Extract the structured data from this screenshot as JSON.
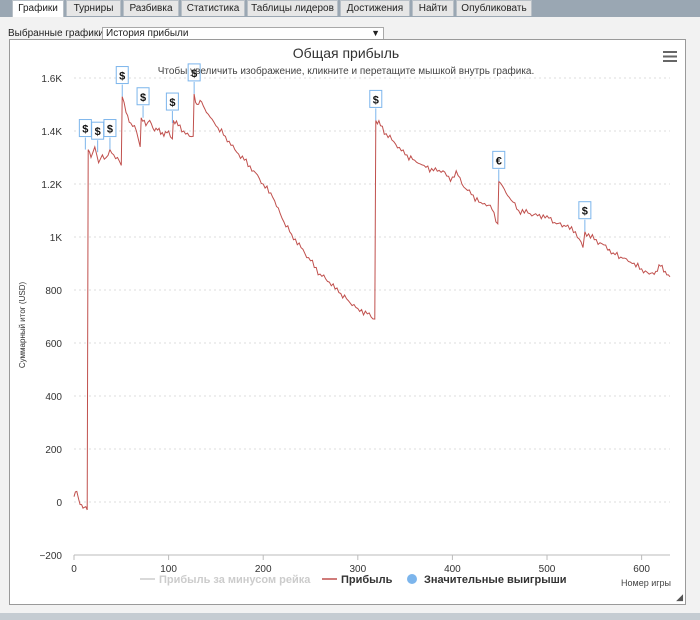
{
  "tabs": [
    {
      "label": "Графики",
      "active": true
    },
    {
      "label": "Турниры",
      "active": false
    },
    {
      "label": "Разбивка",
      "active": false
    },
    {
      "label": "Статистика",
      "active": false
    },
    {
      "label": "Таблицы лидеров",
      "active": false
    },
    {
      "label": "Достижения",
      "active": false
    },
    {
      "label": "Найти",
      "active": false
    },
    {
      "label": "Опубликовать",
      "active": false
    }
  ],
  "selector": {
    "label": "Выбранные графики:",
    "value": "История прибыли"
  },
  "menu_icon": "hamburger-icon",
  "colors": {
    "profit": "#c0504d",
    "rake": "#cccccc",
    "big_wins": "#7cb5ec"
  },
  "chart_data": {
    "type": "line",
    "title": "Общая прибыль",
    "subtitle": "Чтобы увеличить изображение, кликните и перетащите мышкой внутрь графика.",
    "xlabel": "Номер игры",
    "ylabel": "Суммарный итог (USD)",
    "xlim": [
      0,
      630
    ],
    "ylim": [
      -200,
      1600
    ],
    "x_ticks": [
      "0",
      "100",
      "200",
      "300",
      "400",
      "500",
      "600"
    ],
    "y_ticks": [
      "−200",
      "0",
      "200",
      "400",
      "600",
      "800",
      "1K",
      "1.2K",
      "1.4K",
      "1.6K"
    ],
    "grid": true,
    "legend_position": "bottom",
    "series": [
      {
        "name": "Прибыль за минусом рейка",
        "values": []
      },
      {
        "name": "Прибыль",
        "points": [
          [
            0,
            20
          ],
          [
            3,
            40
          ],
          [
            5,
            10
          ],
          [
            8,
            -10
          ],
          [
            11,
            -20
          ],
          [
            14,
            -30
          ],
          [
            15,
            1330
          ],
          [
            18,
            1300
          ],
          [
            22,
            1340
          ],
          [
            26,
            1280
          ],
          [
            30,
            1310
          ],
          [
            34,
            1300
          ],
          [
            38,
            1330
          ],
          [
            42,
            1310
          ],
          [
            46,
            1300
          ],
          [
            50,
            1270
          ],
          [
            51,
            1530
          ],
          [
            55,
            1470
          ],
          [
            60,
            1430
          ],
          [
            66,
            1400
          ],
          [
            70,
            1340
          ],
          [
            71,
            1450
          ],
          [
            76,
            1420
          ],
          [
            80,
            1440
          ],
          [
            85,
            1400
          ],
          [
            90,
            1410
          ],
          [
            95,
            1380
          ],
          [
            100,
            1400
          ],
          [
            104,
            1370
          ],
          [
            105,
            1440
          ],
          [
            110,
            1420
          ],
          [
            116,
            1400
          ],
          [
            122,
            1380
          ],
          [
            126,
            1380
          ],
          [
            127,
            1540
          ],
          [
            130,
            1500
          ],
          [
            135,
            1510
          ],
          [
            140,
            1470
          ],
          [
            150,
            1420
          ],
          [
            160,
            1380
          ],
          [
            170,
            1330
          ],
          [
            180,
            1290
          ],
          [
            190,
            1250
          ],
          [
            200,
            1200
          ],
          [
            210,
            1150
          ],
          [
            220,
            1070
          ],
          [
            230,
            1010
          ],
          [
            240,
            960
          ],
          [
            250,
            910
          ],
          [
            260,
            860
          ],
          [
            270,
            830
          ],
          [
            280,
            790
          ],
          [
            290,
            760
          ],
          [
            300,
            730
          ],
          [
            310,
            710
          ],
          [
            318,
            690
          ],
          [
            319,
            1440
          ],
          [
            324,
            1420
          ],
          [
            330,
            1390
          ],
          [
            340,
            1350
          ],
          [
            350,
            1310
          ],
          [
            360,
            1290
          ],
          [
            370,
            1270
          ],
          [
            380,
            1250
          ],
          [
            390,
            1250
          ],
          [
            398,
            1210
          ],
          [
            404,
            1250
          ],
          [
            410,
            1200
          ],
          [
            420,
            1160
          ],
          [
            430,
            1130
          ],
          [
            440,
            1120
          ],
          [
            448,
            1050
          ],
          [
            449,
            1210
          ],
          [
            455,
            1180
          ],
          [
            460,
            1150
          ],
          [
            470,
            1100
          ],
          [
            480,
            1090
          ],
          [
            490,
            1080
          ],
          [
            500,
            1080
          ],
          [
            510,
            1050
          ],
          [
            520,
            1040
          ],
          [
            530,
            1020
          ],
          [
            538,
            960
          ],
          [
            540,
            1020
          ],
          [
            550,
            990
          ],
          [
            560,
            970
          ],
          [
            570,
            940
          ],
          [
            580,
            920
          ],
          [
            590,
            900
          ],
          [
            600,
            880
          ],
          [
            608,
            860
          ],
          [
            615,
            870
          ],
          [
            620,
            890
          ],
          [
            625,
            870
          ],
          [
            630,
            850
          ]
        ]
      },
      {
        "name": "Значительные выигрыши",
        "markers": [
          {
            "x": 12,
            "y": 1330,
            "label": "$"
          },
          {
            "x": 25,
            "y": 1320,
            "label": "$"
          },
          {
            "x": 38,
            "y": 1330,
            "label": "$"
          },
          {
            "x": 51,
            "y": 1530,
            "label": "$"
          },
          {
            "x": 73,
            "y": 1450,
            "label": "$"
          },
          {
            "x": 104,
            "y": 1430,
            "label": "$"
          },
          {
            "x": 127,
            "y": 1540,
            "label": "$"
          },
          {
            "x": 319,
            "y": 1440,
            "label": "$"
          },
          {
            "x": 449,
            "y": 1210,
            "label": "€"
          },
          {
            "x": 540,
            "y": 1020,
            "label": "$"
          }
        ]
      }
    ]
  }
}
